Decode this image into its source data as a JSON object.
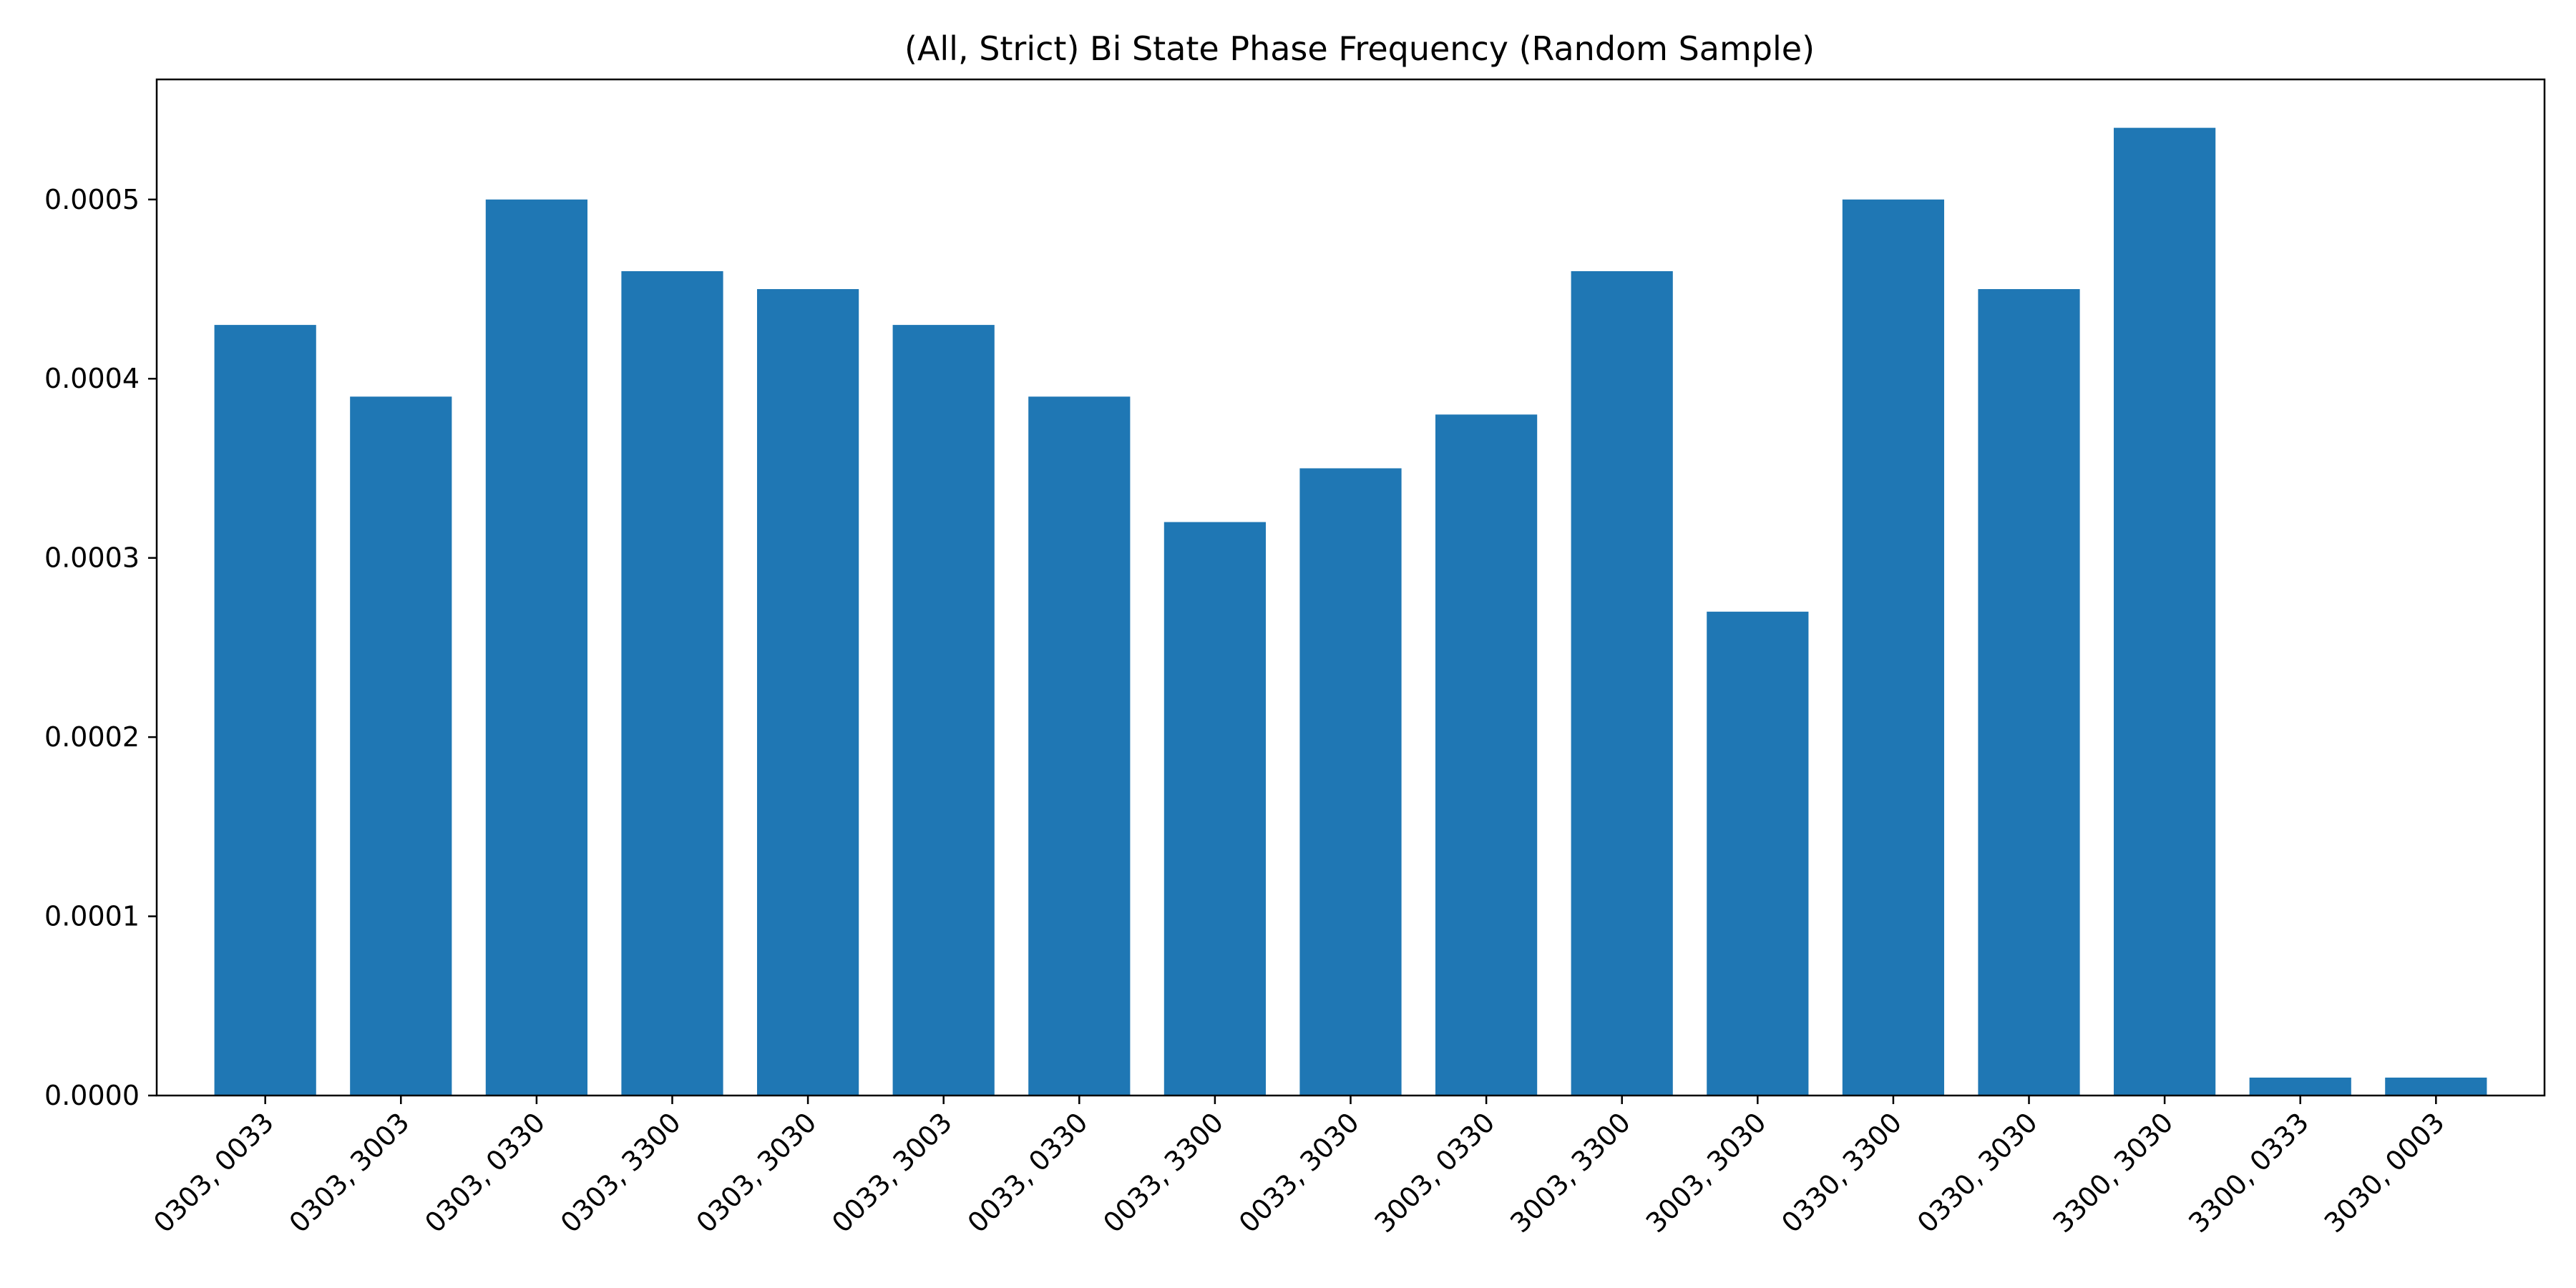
{
  "chart_data": {
    "type": "bar",
    "title": "(All, Strict) Bi State Phase Frequency (Random Sample)",
    "xlabel": "",
    "ylabel": "",
    "categories": [
      "0303, 0033",
      "0303, 3003",
      "0303, 0330",
      "0303, 3300",
      "0303, 3030",
      "0033, 3003",
      "0033, 0330",
      "0033, 3300",
      "0033, 3030",
      "3003, 0330",
      "3003, 3300",
      "3003, 3030",
      "0330, 3300",
      "0330, 3030",
      "3300, 3030",
      "3300, 0333",
      "3030, 0003"
    ],
    "values": [
      0.00043,
      0.00039,
      0.0005,
      0.00046,
      0.00045,
      0.00043,
      0.00039,
      0.00032,
      0.00035,
      0.00038,
      0.00046,
      0.00027,
      0.0005,
      0.00045,
      0.00054,
      1e-05,
      1e-05
    ],
    "ylim": [
      0,
      0.000567
    ],
    "yticks": [
      "0.0000",
      "0.0001",
      "0.0002",
      "0.0003",
      "0.0004",
      "0.0005"
    ],
    "grid": false,
    "colors": {
      "bar": "#1f77b4"
    }
  }
}
